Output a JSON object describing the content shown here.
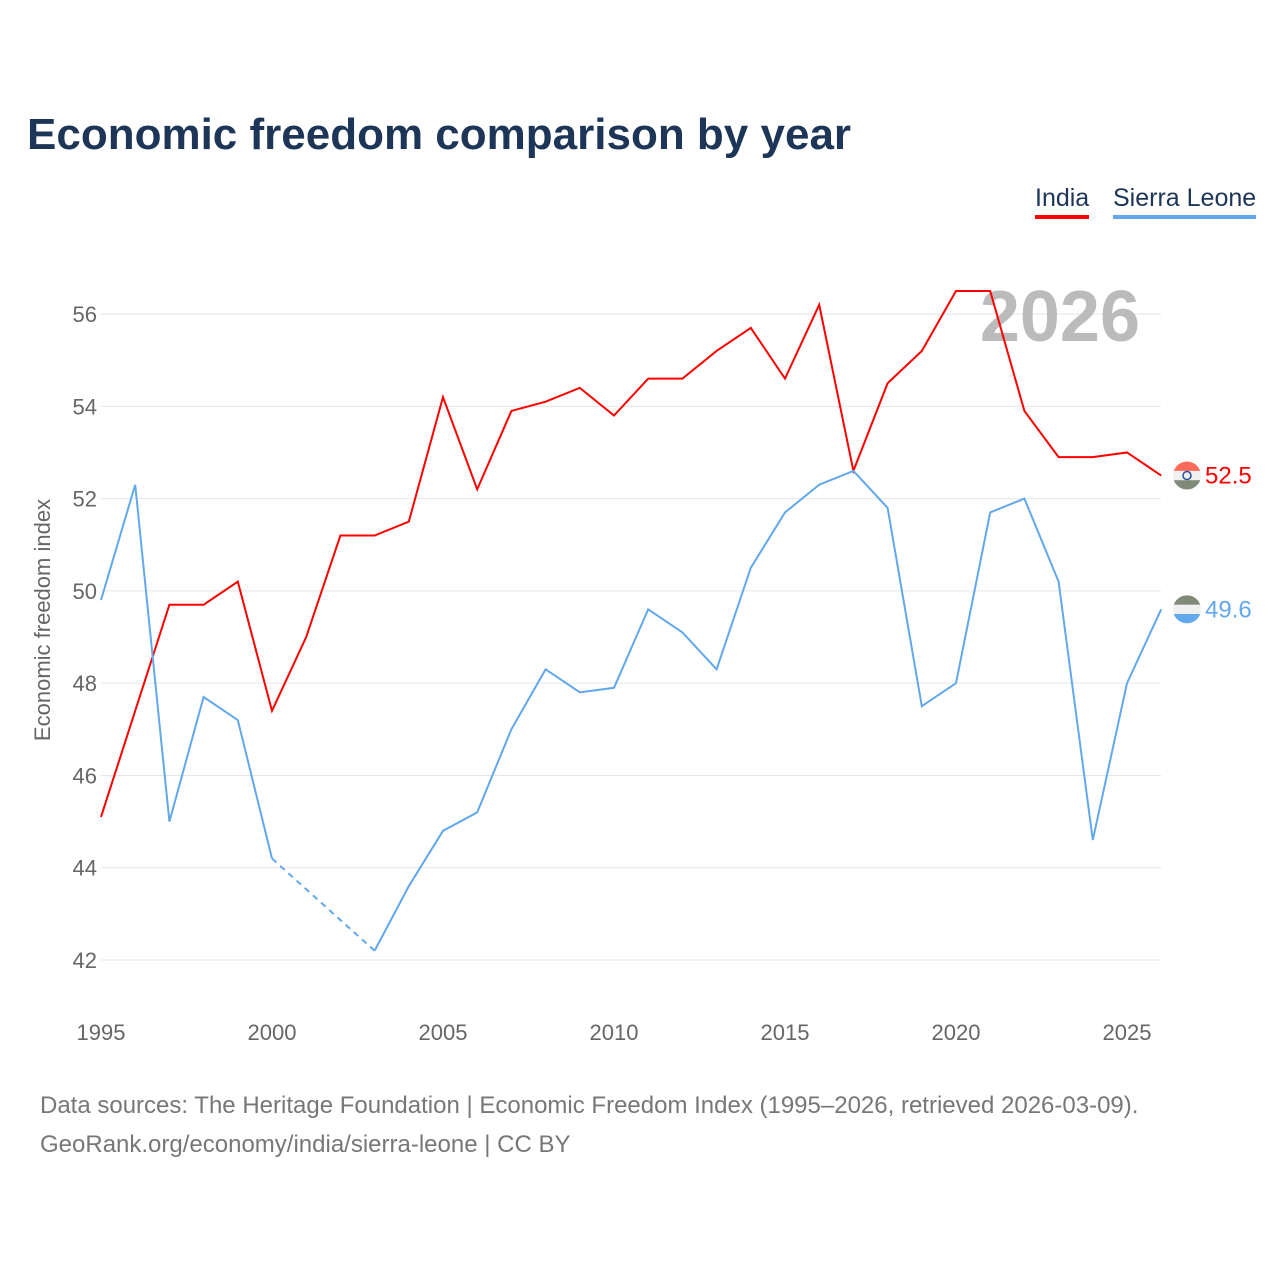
{
  "title": "Economic freedom comparison by year",
  "footer": {
    "line1": "Data sources: The Heritage Foundation | Economic Freedom Index (1995–2026, retrieved 2026-03-09).",
    "line2": "GeoRank.org/economy/india/sierra-leone | CC BY"
  },
  "chart_data": {
    "type": "line",
    "title": "Economic freedom comparison by year",
    "xlabel": "",
    "ylabel": "Economic freedom index",
    "year_label": "2026",
    "xlim": [
      1995,
      2026
    ],
    "ylim": [
      41,
      57.5
    ],
    "xticks": [
      1995,
      2000,
      2005,
      2010,
      2015,
      2020,
      2025
    ],
    "yticks": [
      42,
      44,
      46,
      48,
      50,
      52,
      54,
      56
    ],
    "grid": true,
    "legend_placement": "top-right",
    "x": [
      1995,
      1996,
      1997,
      1998,
      1999,
      2000,
      2001,
      2002,
      2003,
      2004,
      2005,
      2006,
      2007,
      2008,
      2009,
      2010,
      2011,
      2012,
      2013,
      2014,
      2015,
      2016,
      2017,
      2018,
      2019,
      2020,
      2021,
      2022,
      2023,
      2024,
      2025,
      2026
    ],
    "series": [
      {
        "name": "India",
        "color": "#ff0000",
        "end_label": "52.5",
        "values": [
          45.1,
          47.4,
          49.7,
          49.7,
          50.2,
          47.4,
          49.0,
          51.2,
          51.2,
          51.5,
          54.2,
          52.2,
          53.9,
          54.1,
          54.4,
          53.8,
          54.6,
          54.6,
          55.2,
          55.7,
          54.6,
          56.2,
          52.6,
          54.5,
          55.2,
          56.5,
          56.5,
          53.9,
          52.9,
          52.9,
          53.0,
          52.5
        ]
      },
      {
        "name": "Sierra Leone",
        "color": "#62a8ec",
        "end_label": "49.6",
        "values": [
          49.8,
          52.3,
          45.0,
          47.7,
          47.2,
          44.2,
          null,
          null,
          42.2,
          43.6,
          44.8,
          45.2,
          47.0,
          48.3,
          47.8,
          47.9,
          49.6,
          49.1,
          48.3,
          50.5,
          51.7,
          52.3,
          52.6,
          51.8,
          47.5,
          48.0,
          51.7,
          52.0,
          50.2,
          44.6,
          48.0,
          49.6
        ]
      }
    ]
  }
}
